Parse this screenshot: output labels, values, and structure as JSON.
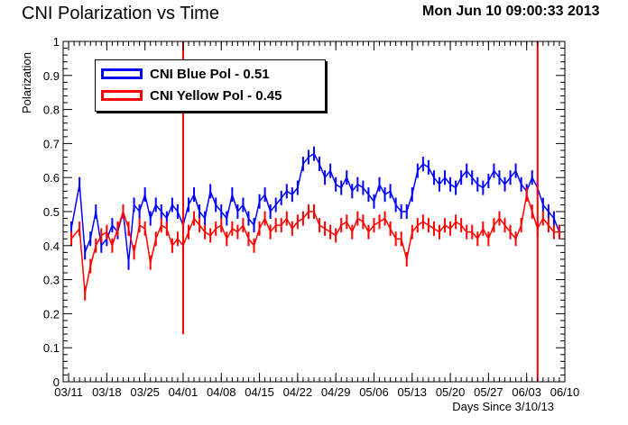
{
  "header": {
    "title": "CNI Polarization vs Time",
    "timestamp": "Mon Jun 10 09:00:33 2013"
  },
  "chart_data": {
    "type": "scatter",
    "title": "CNI Polarization vs Time",
    "xlabel": "Days Since 3/10/13",
    "ylabel": "Polarization",
    "xlim": [
      0,
      92
    ],
    "ylim": [
      0,
      1
    ],
    "x_ticks": [
      {
        "day": 1,
        "label": "03/11"
      },
      {
        "day": 8,
        "label": "03/18"
      },
      {
        "day": 15,
        "label": "03/25"
      },
      {
        "day": 22,
        "label": "04/01"
      },
      {
        "day": 29,
        "label": "04/08"
      },
      {
        "day": 36,
        "label": "04/15"
      },
      {
        "day": 43,
        "label": "04/22"
      },
      {
        "day": 50,
        "label": "04/29"
      },
      {
        "day": 57,
        "label": "05/06"
      },
      {
        "day": 64,
        "label": "05/13"
      },
      {
        "day": 71,
        "label": "05/20"
      },
      {
        "day": 78,
        "label": "05/27"
      },
      {
        "day": 85,
        "label": "06/03"
      },
      {
        "day": 92,
        "label": "06/10"
      }
    ],
    "y_ticks": [
      0,
      0.1,
      0.2,
      0.3,
      0.4,
      0.5,
      0.6,
      0.7,
      0.8,
      0.9,
      1
    ],
    "y_tick_labels": [
      "0",
      "0.1",
      "0.2",
      "0.3",
      "0.4",
      "0.5",
      "0.6",
      "0.7",
      "0.8",
      "0.9",
      "1"
    ],
    "grid": false,
    "legend_position": "top-left",
    "series": [
      {
        "name": "CNI Blue Pol -  0.51",
        "color": "#0000ff",
        "x": [
          1.5,
          3,
          4,
          5,
          6,
          7,
          8,
          9,
          10,
          11,
          12,
          13,
          14,
          15,
          16,
          17,
          18,
          19,
          20,
          21,
          22,
          23,
          24,
          25,
          26,
          27,
          28,
          29,
          30,
          31,
          32,
          33,
          34,
          35,
          36,
          37,
          38,
          39,
          40,
          41,
          42,
          43,
          44,
          45,
          46,
          47,
          48,
          49,
          50,
          51,
          52,
          53,
          54,
          55,
          56,
          57,
          58,
          59,
          60,
          61,
          62,
          63,
          64,
          65,
          66,
          67,
          68,
          69,
          70,
          71,
          72,
          73,
          74,
          75,
          76,
          77,
          78,
          79,
          80,
          81,
          82,
          83,
          84,
          85,
          86,
          87,
          88,
          89,
          90,
          91
        ],
        "y": [
          0.45,
          0.58,
          0.38,
          0.42,
          0.5,
          0.4,
          0.42,
          0.46,
          0.44,
          0.5,
          0.35,
          0.52,
          0.5,
          0.55,
          0.48,
          0.52,
          0.5,
          0.48,
          0.52,
          0.5,
          0.46,
          0.52,
          0.55,
          0.5,
          0.48,
          0.56,
          0.52,
          0.5,
          0.48,
          0.55,
          0.5,
          0.52,
          0.48,
          0.46,
          0.53,
          0.55,
          0.5,
          0.52,
          0.54,
          0.56,
          0.55,
          0.57,
          0.64,
          0.66,
          0.67,
          0.64,
          0.6,
          0.62,
          0.58,
          0.57,
          0.6,
          0.56,
          0.58,
          0.57,
          0.55,
          0.53,
          0.58,
          0.55,
          0.56,
          0.52,
          0.5,
          0.5,
          0.55,
          0.62,
          0.64,
          0.63,
          0.6,
          0.58,
          0.6,
          0.58,
          0.57,
          0.6,
          0.62,
          0.6,
          0.58,
          0.57,
          0.59,
          0.62,
          0.6,
          0.58,
          0.6,
          0.62,
          0.58,
          0.56,
          0.6,
          0.57,
          0.52,
          0.5,
          0.48,
          0.44
        ]
      },
      {
        "name": "CNI Yellow Pol -  0.45",
        "color": "#ff0000",
        "x": [
          1.5,
          3,
          4,
          5,
          6,
          7,
          8,
          9,
          10,
          11,
          12,
          13,
          14,
          15,
          16,
          17,
          18,
          19,
          20,
          21,
          22,
          23,
          24,
          25,
          26,
          27,
          28,
          29,
          30,
          31,
          32,
          33,
          34,
          35,
          36,
          37,
          38,
          39,
          40,
          41,
          42,
          43,
          44,
          45,
          46,
          47,
          48,
          49,
          50,
          51,
          52,
          53,
          54,
          55,
          56,
          57,
          58,
          59,
          60,
          61,
          62,
          63,
          64,
          65,
          66,
          67,
          68,
          69,
          70,
          71,
          72,
          73,
          74,
          75,
          76,
          77,
          78,
          79,
          80,
          81,
          82,
          83,
          84,
          85,
          86,
          87,
          88,
          89,
          90,
          91
        ],
        "y": [
          0.42,
          0.45,
          0.26,
          0.34,
          0.4,
          0.43,
          0.44,
          0.4,
          0.45,
          0.5,
          0.45,
          0.38,
          0.46,
          0.45,
          0.35,
          0.42,
          0.46,
          0.45,
          0.4,
          0.42,
          0.4,
          0.44,
          0.48,
          0.46,
          0.44,
          0.43,
          0.45,
          0.46,
          0.42,
          0.45,
          0.44,
          0.46,
          0.42,
          0.4,
          0.45,
          0.48,
          0.44,
          0.46,
          0.46,
          0.48,
          0.45,
          0.47,
          0.48,
          0.5,
          0.5,
          0.46,
          0.45,
          0.44,
          0.43,
          0.46,
          0.47,
          0.44,
          0.48,
          0.47,
          0.44,
          0.46,
          0.47,
          0.48,
          0.45,
          0.42,
          0.42,
          0.36,
          0.44,
          0.46,
          0.47,
          0.46,
          0.45,
          0.44,
          0.46,
          0.45,
          0.47,
          0.46,
          0.44,
          0.44,
          0.42,
          0.45,
          0.42,
          0.46,
          0.48,
          0.46,
          0.44,
          0.42,
          0.46,
          0.55,
          0.5,
          0.45,
          0.48,
          0.46,
          0.44,
          0.44
        ]
      }
    ],
    "annotations": [
      {
        "type": "vertical-line",
        "x": 22,
        "ylim": [
          0.14,
          1
        ],
        "color": "#ff0000"
      },
      {
        "type": "vertical-line",
        "x": 87,
        "ylim": [
          0,
          1
        ],
        "color": "#ff0000"
      }
    ]
  }
}
